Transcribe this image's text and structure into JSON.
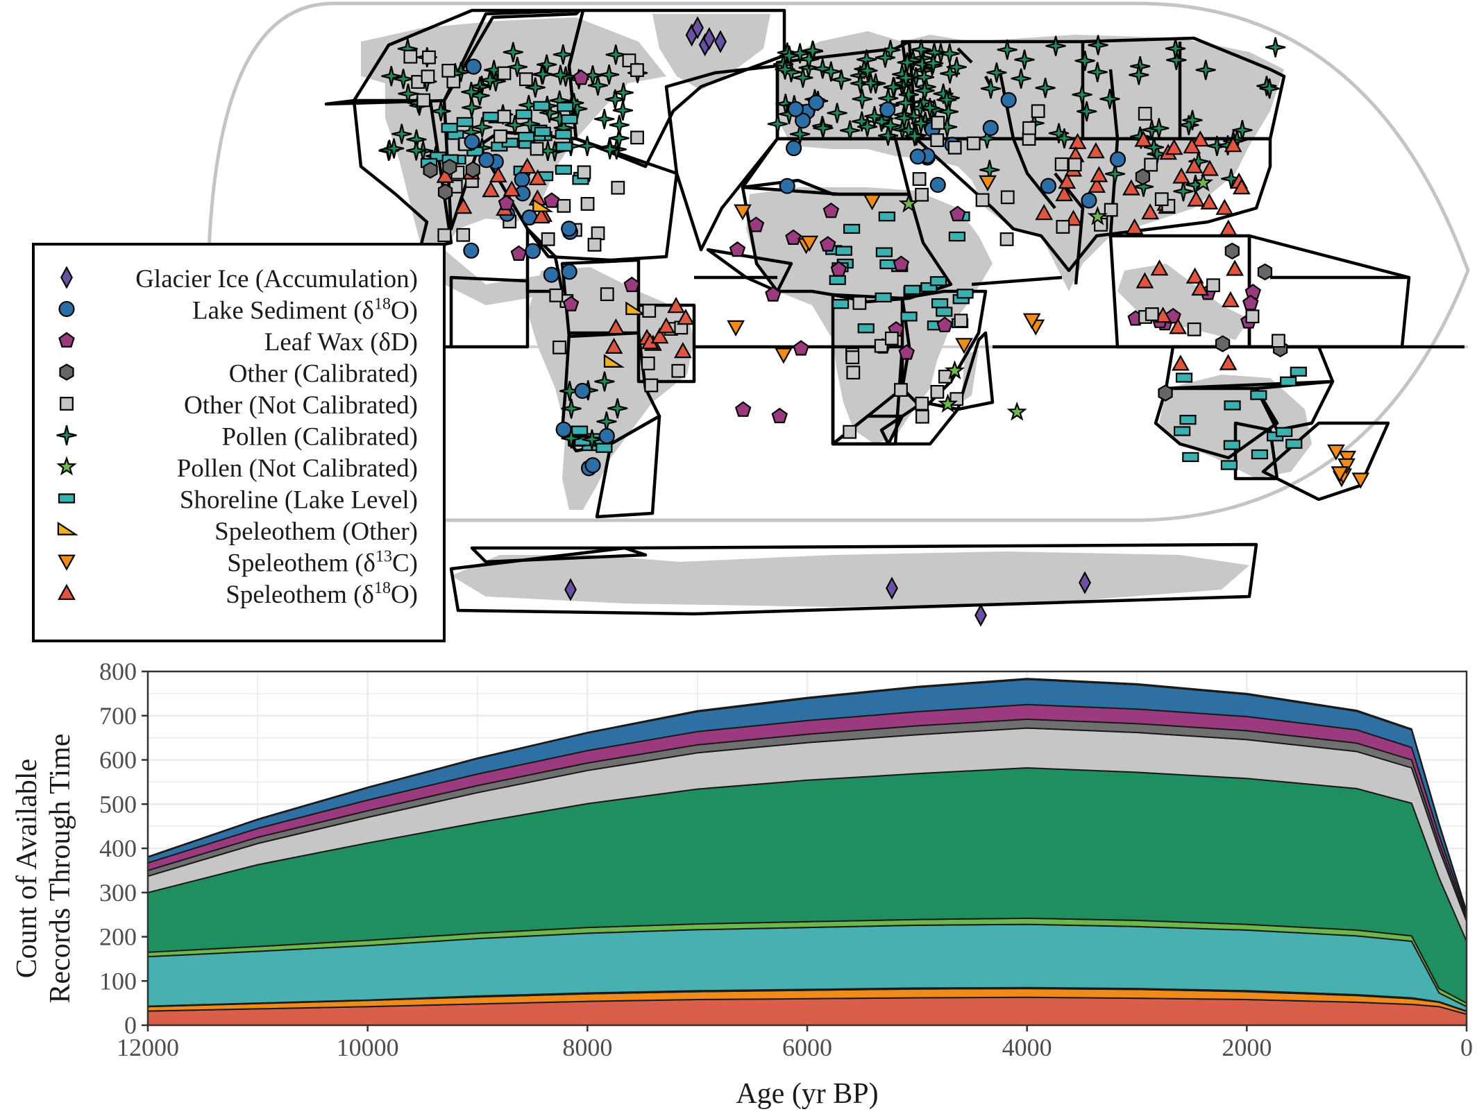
{
  "legend": [
    {
      "key": "glacier",
      "label": "Glacier Ice (Accumulation)",
      "sub": "",
      "tail": "",
      "shape": "diamond",
      "color": "#6a4fa3"
    },
    {
      "key": "lake",
      "label": "Lake Sediment (δ",
      "sub": "18",
      "tail": "O)",
      "shape": "circle",
      "color": "#2b6fa6"
    },
    {
      "key": "leafwax",
      "label": "Leaf Wax (δD)",
      "sub": "",
      "tail": "",
      "shape": "pentagon",
      "color": "#9c3a7f"
    },
    {
      "key": "othercal",
      "label": "Other (Calibrated)",
      "sub": "",
      "tail": "",
      "shape": "hexagon",
      "color": "#666666"
    },
    {
      "key": "othernc",
      "label": "Other (Not Calibrated)",
      "sub": "",
      "tail": "",
      "shape": "square",
      "color": "#c6c6c6"
    },
    {
      "key": "pollencal",
      "label": "Pollen (Calibrated)",
      "sub": "",
      "tail": "",
      "shape": "star4",
      "color": "#1f8a5a"
    },
    {
      "key": "pollennc",
      "label": "Pollen (Not Calibrated)",
      "sub": "",
      "tail": "",
      "shape": "star5",
      "color": "#6db84a"
    },
    {
      "key": "shoreline",
      "label": "Shoreline (Lake Level)",
      "sub": "",
      "tail": "",
      "shape": "rect",
      "color": "#3ab0b0"
    },
    {
      "key": "speleo_other",
      "label": "Speleothem (Other)",
      "sub": "",
      "tail": "",
      "shape": "wedge",
      "color": "#f0b020"
    },
    {
      "key": "speleo_c13",
      "label": "Speleothem (δ",
      "sub": "13",
      "tail": "C)",
      "shape": "tri-down",
      "color": "#f08a18"
    },
    {
      "key": "speleo_o18",
      "label": "Speleothem (δ",
      "sub": "18",
      "tail": "O)",
      "shape": "tri-up",
      "color": "#e0553f"
    }
  ],
  "chart_data": {
    "type": "area",
    "stacked": true,
    "xlabel": "Age (yr BP)",
    "ylabel_line1": "Count of Available",
    "ylabel_line2": "Records Through Time",
    "xlim": [
      12000,
      0
    ],
    "ylim": [
      0,
      800
    ],
    "x_ticks": [
      12000,
      10000,
      8000,
      6000,
      4000,
      2000,
      0
    ],
    "y_ticks": [
      0,
      100,
      200,
      300,
      400,
      500,
      600,
      700,
      800
    ],
    "x": [
      12000,
      11000,
      10000,
      9000,
      8000,
      7000,
      6000,
      5000,
      4000,
      3000,
      2000,
      1000,
      500,
      250,
      0
    ],
    "series": [
      {
        "name": "Speleothem (δ18O)",
        "color": "#d95f4a",
        "values": [
          32,
          37,
          42,
          48,
          54,
          58,
          60,
          62,
          63,
          61,
          58,
          52,
          47,
          42,
          25
        ]
      },
      {
        "name": "Speleothem (δ13C)",
        "color": "#f08a18",
        "values": [
          10,
          12,
          14,
          16,
          17,
          18,
          19,
          20,
          20,
          20,
          18,
          15,
          13,
          10,
          6
        ]
      },
      {
        "name": "Speleothem (Other)",
        "color": "#f0b020",
        "values": [
          1,
          1,
          1,
          2,
          2,
          2,
          2,
          2,
          2,
          2,
          2,
          2,
          2,
          1,
          1
        ]
      },
      {
        "name": "Shoreline (Lake Level)",
        "color": "#48b0b0",
        "values": [
          112,
          117,
          123,
          130,
          135,
          138,
          140,
          142,
          143,
          140,
          137,
          133,
          128,
          20,
          10
        ]
      },
      {
        "name": "Pollen (Not Calibrated)",
        "color": "#6db84a",
        "values": [
          10,
          11,
          12,
          12,
          13,
          13,
          13,
          13,
          14,
          14,
          13,
          13,
          12,
          10,
          8
        ]
      },
      {
        "name": "Pollen (Calibrated)",
        "color": "#1f8f5f",
        "values": [
          135,
          185,
          220,
          250,
          280,
          305,
          320,
          330,
          340,
          335,
          330,
          320,
          300,
          250,
          140
        ]
      },
      {
        "name": "Other (Not Calibrated)",
        "color": "#c6c6c6",
        "values": [
          37,
          48,
          58,
          68,
          75,
          82,
          85,
          88,
          90,
          90,
          88,
          84,
          80,
          65,
          45
        ]
      },
      {
        "name": "Other (Calibrated)",
        "color": "#707070",
        "values": [
          13,
          14,
          15,
          16,
          17,
          18,
          19,
          20,
          20,
          20,
          20,
          19,
          18,
          13,
          8
        ]
      },
      {
        "name": "Leaf Wax (δD)",
        "color": "#9c3a7f",
        "values": [
          17,
          20,
          24,
          26,
          28,
          30,
          31,
          32,
          33,
          33,
          32,
          30,
          28,
          18,
          8
        ]
      },
      {
        "name": "Lake Sediment (δ18O)",
        "color": "#2e70a3",
        "values": [
          13,
          20,
          28,
          35,
          40,
          45,
          50,
          55,
          57,
          55,
          50,
          42,
          40,
          25,
          5
        ]
      },
      {
        "name": "Glacier Ice (Accumulation)",
        "color": "#6a4fa3",
        "values": [
          1,
          1,
          1,
          1,
          1,
          2,
          2,
          2,
          2,
          2,
          2,
          2,
          2,
          2,
          2
        ]
      }
    ]
  }
}
